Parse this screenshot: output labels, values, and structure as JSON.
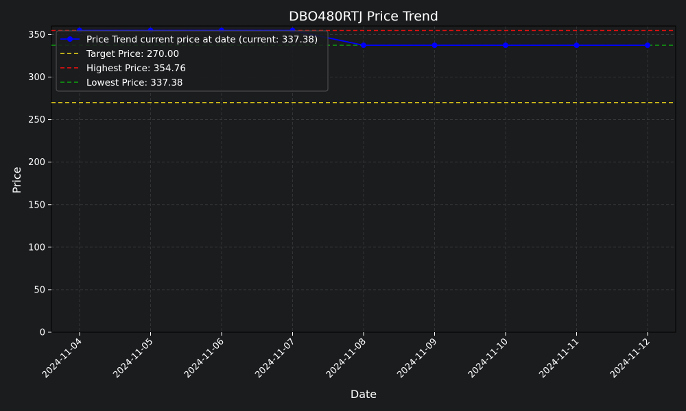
{
  "chart_data": {
    "type": "line",
    "title": "DBO480RTJ Price Trend",
    "xlabel": "Date",
    "ylabel": "Price",
    "ylim": [
      0,
      360
    ],
    "y_ticks": [
      0,
      50,
      100,
      150,
      200,
      250,
      300,
      350
    ],
    "grid": true,
    "legend_position": "top-left",
    "categories": [
      "2024-11-04",
      "2024-11-05",
      "2024-11-06",
      "2024-11-07",
      "2024-11-08",
      "2024-11-09",
      "2024-11-10",
      "2024-11-11",
      "2024-11-12"
    ],
    "series": [
      {
        "name": "Price Trend current price at date (current: 337.38)",
        "color": "#0000ff",
        "style": "solid",
        "marker": "circle",
        "values": [
          354.76,
          354.76,
          354.76,
          354.76,
          337.38,
          337.38,
          337.38,
          337.38,
          337.38
        ]
      }
    ],
    "reference_lines": [
      {
        "name": "Target Price: 270.00",
        "value": 270.0,
        "color": "#d4c01a",
        "style": "dashed"
      },
      {
        "name": "Highest Price: 354.76",
        "value": 354.76,
        "color": "#e01010",
        "style": "dashed"
      },
      {
        "name": "Lowest Price: 337.38",
        "value": 337.38,
        "color": "#109010",
        "style": "dashed"
      }
    ],
    "colors": {
      "background": "#1b1c1e",
      "text": "#ffffff",
      "grid": "#3a3b3d",
      "legend_bg": "#1b1c1e",
      "legend_border": "#555555"
    }
  }
}
